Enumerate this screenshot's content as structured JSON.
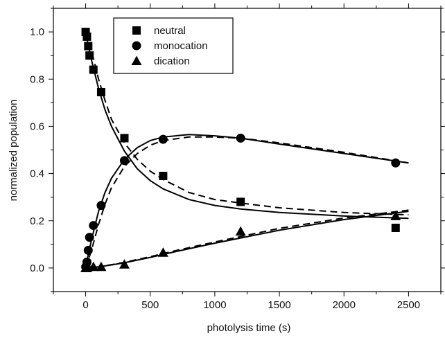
{
  "chart_data": {
    "type": "scatter",
    "title": "",
    "xlabel": "photolysis time (s)",
    "ylabel": "normalized population",
    "xlim": [
      -250,
      2750
    ],
    "ylim": [
      -0.1,
      1.1
    ],
    "xticks": [
      0,
      500,
      1000,
      1500,
      2000,
      2500
    ],
    "yticks": [
      0.0,
      0.2,
      0.4,
      0.6,
      0.8,
      1.0
    ],
    "xtick_labels": [
      "0",
      "500",
      "1000",
      "1500",
      "2000",
      "2500"
    ],
    "ytick_labels": [
      "0.0",
      "0.2",
      "0.4",
      "0.6",
      "0.8",
      "1.0"
    ],
    "grid": false,
    "legend_position": "top-left",
    "series": [
      {
        "name": "neutral",
        "marker": "square",
        "x": [
          0,
          10,
          20,
          30,
          60,
          120,
          300,
          600,
          1200,
          2400
        ],
        "y": [
          1.0,
          0.98,
          0.94,
          0.9,
          0.84,
          0.745,
          0.55,
          0.39,
          0.28,
          0.17
        ],
        "fit_solid": {
          "x": [
            0,
            25,
            50,
            100,
            150,
            200,
            300,
            400,
            500,
            600,
            800,
            1000,
            1200,
            1500,
            2000,
            2500
          ],
          "y": [
            1.0,
            0.93,
            0.87,
            0.76,
            0.67,
            0.6,
            0.495,
            0.42,
            0.37,
            0.335,
            0.29,
            0.265,
            0.25,
            0.235,
            0.22,
            0.21
          ]
        },
        "fit_dashed": {
          "x": [
            0,
            25,
            50,
            100,
            150,
            200,
            300,
            400,
            500,
            600,
            800,
            1000,
            1200,
            1500,
            2000,
            2500
          ],
          "y": [
            1.0,
            0.96,
            0.91,
            0.8,
            0.71,
            0.63,
            0.53,
            0.46,
            0.41,
            0.375,
            0.32,
            0.29,
            0.275,
            0.255,
            0.235,
            0.225
          ]
        }
      },
      {
        "name": "monocation",
        "marker": "circle",
        "x": [
          0,
          10,
          20,
          30,
          60,
          120,
          300,
          600,
          1200,
          2400
        ],
        "y": [
          0.005,
          0.025,
          0.075,
          0.13,
          0.18,
          0.265,
          0.455,
          0.545,
          0.55,
          0.445
        ],
        "fit_solid": {
          "x": [
            0,
            25,
            50,
            100,
            150,
            200,
            300,
            400,
            500,
            600,
            800,
            1000,
            1200,
            1500,
            2000,
            2500
          ],
          "y": [
            0.0,
            0.07,
            0.13,
            0.24,
            0.32,
            0.38,
            0.46,
            0.51,
            0.54,
            0.555,
            0.565,
            0.56,
            0.55,
            0.525,
            0.485,
            0.445
          ]
        },
        "fit_dashed": {
          "x": [
            0,
            25,
            50,
            100,
            150,
            200,
            300,
            400,
            500,
            600,
            800,
            1000,
            1200,
            1500,
            2000,
            2500
          ],
          "y": [
            0.0,
            0.04,
            0.085,
            0.185,
            0.27,
            0.34,
            0.43,
            0.485,
            0.52,
            0.54,
            0.555,
            0.555,
            0.55,
            0.53,
            0.49,
            0.445
          ]
        }
      },
      {
        "name": "dication",
        "marker": "triangle",
        "x": [
          0,
          10,
          20,
          60,
          120,
          300,
          600,
          1200,
          2400
        ],
        "y": [
          0.0,
          0.0,
          0.005,
          0.005,
          0.005,
          0.015,
          0.065,
          0.155,
          0.22
        ],
        "fit_solid": {
          "x": [
            0,
            100,
            200,
            300,
            500,
            700,
            1000,
            1500,
            2000,
            2500
          ],
          "y": [
            0.0,
            0.005,
            0.013,
            0.022,
            0.045,
            0.07,
            0.105,
            0.16,
            0.205,
            0.24
          ]
        },
        "fit_dashed": {
          "x": [
            0,
            100,
            200,
            300,
            500,
            700,
            1000,
            1500,
            2000,
            2500
          ],
          "y": [
            0.0,
            0.005,
            0.014,
            0.024,
            0.048,
            0.074,
            0.11,
            0.168,
            0.212,
            0.245
          ]
        }
      }
    ]
  }
}
